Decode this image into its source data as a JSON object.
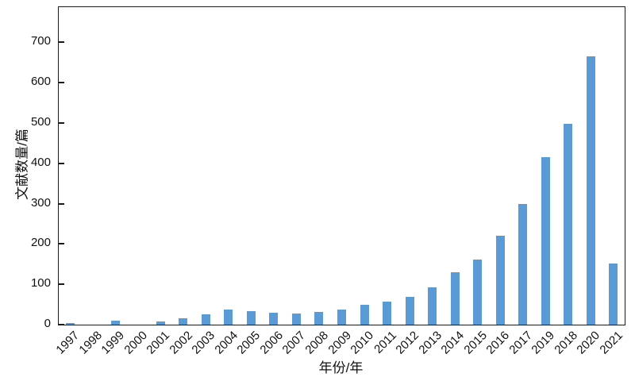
{
  "figure": {
    "background": "#ffffff",
    "frame_color": "#1a1a1a"
  },
  "chart_data": {
    "type": "bar",
    "title": "",
    "xlabel": "年份/年",
    "ylabel": "文献数量/篇",
    "categories": [
      "1997",
      "1998",
      "1999",
      "2000",
      "2001",
      "2002",
      "2003",
      "2004",
      "2005",
      "2006",
      "2007",
      "2008",
      "2009",
      "2010",
      "2011",
      "2012",
      "2013",
      "2014",
      "2015",
      "2016",
      "2017",
      "2019",
      "2018",
      "2020",
      "2021"
    ],
    "values": [
      4,
      0,
      9,
      0,
      8,
      16,
      25,
      37,
      34,
      29,
      27,
      31,
      38,
      50,
      57,
      68,
      92,
      130,
      162,
      221,
      300,
      415,
      498,
      665,
      152
    ],
    "yticks": [
      0,
      100,
      200,
      300,
      400,
      500,
      600,
      700
    ],
    "ylim": [
      0,
      787
    ],
    "x_tick_rotation": 45,
    "bar_color": "#5b9bd5",
    "axis_color": "#1a1a1a",
    "grid": false,
    "legend": false
  }
}
